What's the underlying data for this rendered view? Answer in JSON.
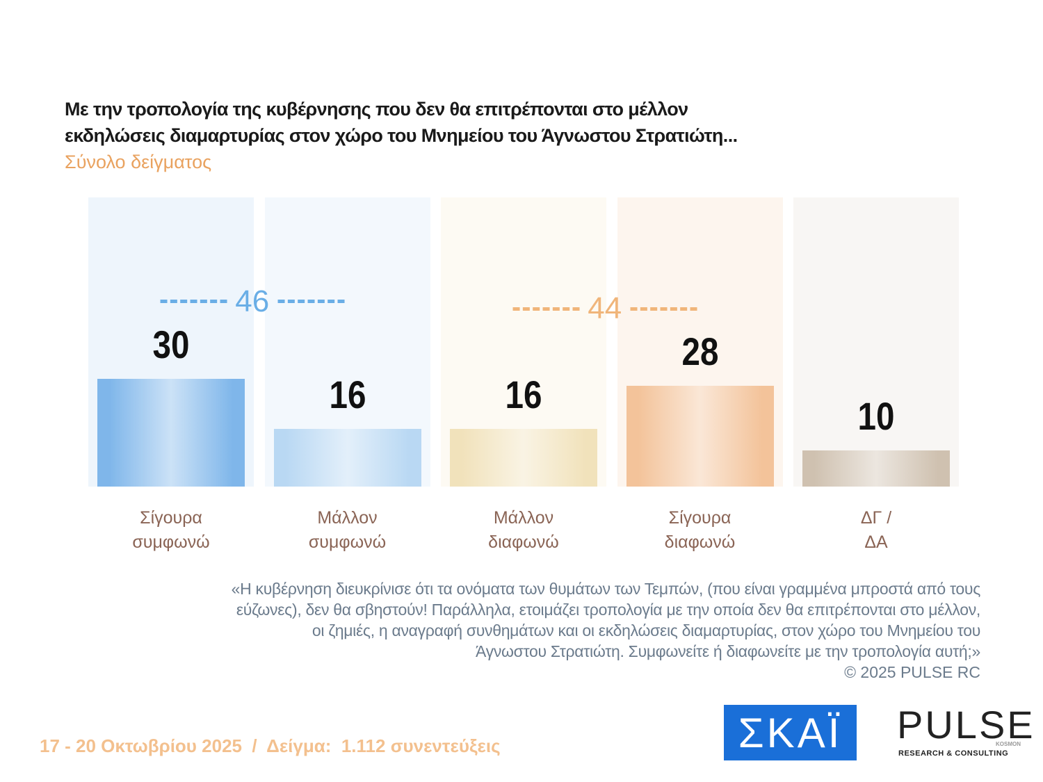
{
  "chart_data": {
    "type": "bar",
    "title": "Με την τροπολογία της κυβέρνησης που δεν θα επιτρέπονται στο μέλλον\nεκδηλώσεις διαμαρτυρίας στον χώρο του Μνημείου του Άγνωστου Στρατιώτη...",
    "subtitle": "Σύνολο δείγματος",
    "categories": [
      "Σίγουρα\nσυμφωνώ",
      "Μάλλον\nσυμφωνώ",
      "Μάλλον\nδιαφωνώ",
      "Σίγουρα\nδιαφωνώ",
      "ΔΓ /\nΔΑ"
    ],
    "values": [
      30,
      16,
      16,
      28,
      10
    ],
    "colors": [
      "#7fb6ea",
      "#b9d8f3",
      "#f1e2bb",
      "#f3c39a",
      "#cfc1b0"
    ],
    "panel_colors": [
      "#eef5fc",
      "#f3f8fd",
      "#fdfaf3",
      "#fdf5ee",
      "#f8f6f4"
    ],
    "annotations": [
      {
        "value": 46,
        "color": "#6aaee6"
      },
      {
        "value": 44,
        "color": "#f0b57a"
      }
    ],
    "note": "«Η κυβέρνηση διευκρίνισε ότι τα ονόματα των θυμάτων των Τεμπών, (που είναι γραμμένα μπροστά από τους\nεύζωνες), δεν θα σβηστούν! Παράλληλα, ετοιμάζει τροπολογία με την οποία δεν θα επιτρέπονται στο μέλλον,\nοι ζημιές, η αναγραφή συνθημάτων και οι εκδηλώσεις διαμαρτυρίας, στον χώρο του Μνημείου του\nΆγνωστου Στρατιώτη. Συμφωνείτε ή διαφωνείτε με την τροπολογία αυτή;»",
    "copyright": "©  2025  PULSE RC",
    "footer": "17 - 20 Οκτωβρίου 2025  /  Δείγμα:  1.112 συνεντεύξεις",
    "logos": {
      "skai": "ΣΚΑΪ",
      "pulse": "PULSE",
      "pulse_sub": "RESEARCH & CONSULTING",
      "pulse_tag": "KOSMON"
    }
  }
}
